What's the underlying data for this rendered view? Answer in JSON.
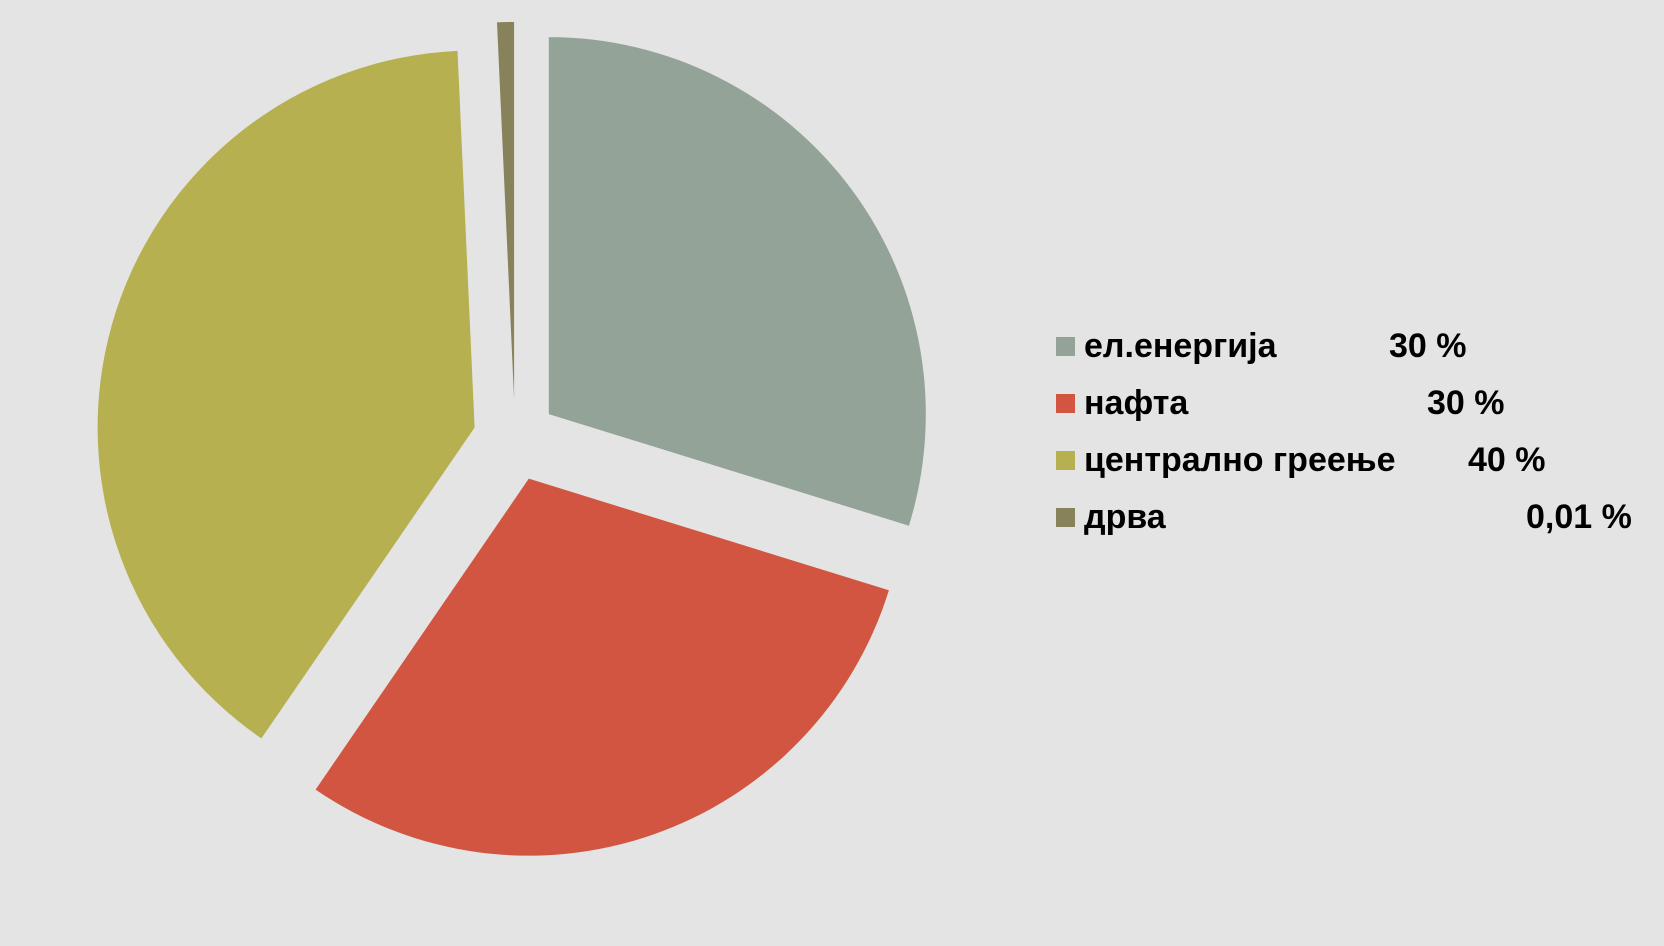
{
  "chart_data": {
    "type": "pie",
    "style": "exploded",
    "categories": [
      "ел.енергија",
      "нафта",
      "централно греење",
      "дрва"
    ],
    "values": [
      30,
      30,
      40,
      0.01
    ],
    "value_labels": [
      "30 %",
      "30 %",
      "40 %",
      "0,01 %"
    ],
    "colors": [
      "#93a398",
      "#d15540",
      "#b6b051",
      "#87825a"
    ],
    "legend_position": "right",
    "title": ""
  }
}
